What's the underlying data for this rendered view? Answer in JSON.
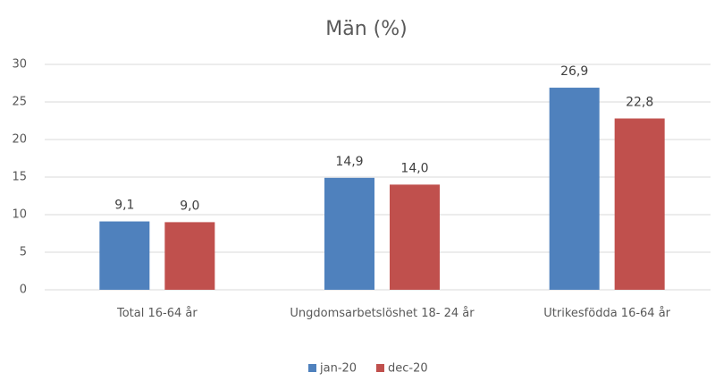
{
  "chart_data": {
    "type": "bar",
    "title": "Män (%)",
    "categories": [
      "Total 16-64 år",
      "Ungdomsarbetslöshet 18- 24 år",
      "Utrikesfödda 16-64 år"
    ],
    "series": [
      {
        "name": "jan-20",
        "color": "#4f81bd",
        "values": [
          9.1,
          14.9,
          26.9
        ],
        "value_labels": [
          "9,1",
          "14,9",
          "26,9"
        ]
      },
      {
        "name": "dec-20",
        "color": "#c0504d",
        "values": [
          9.0,
          14.0,
          22.8
        ],
        "value_labels": [
          "9,0",
          "14,0",
          "22,8"
        ]
      }
    ],
    "ylim": [
      0,
      30
    ],
    "yticks": [
      0,
      5,
      10,
      15,
      20,
      25,
      30
    ],
    "grid": true,
    "legend": "bottom"
  }
}
